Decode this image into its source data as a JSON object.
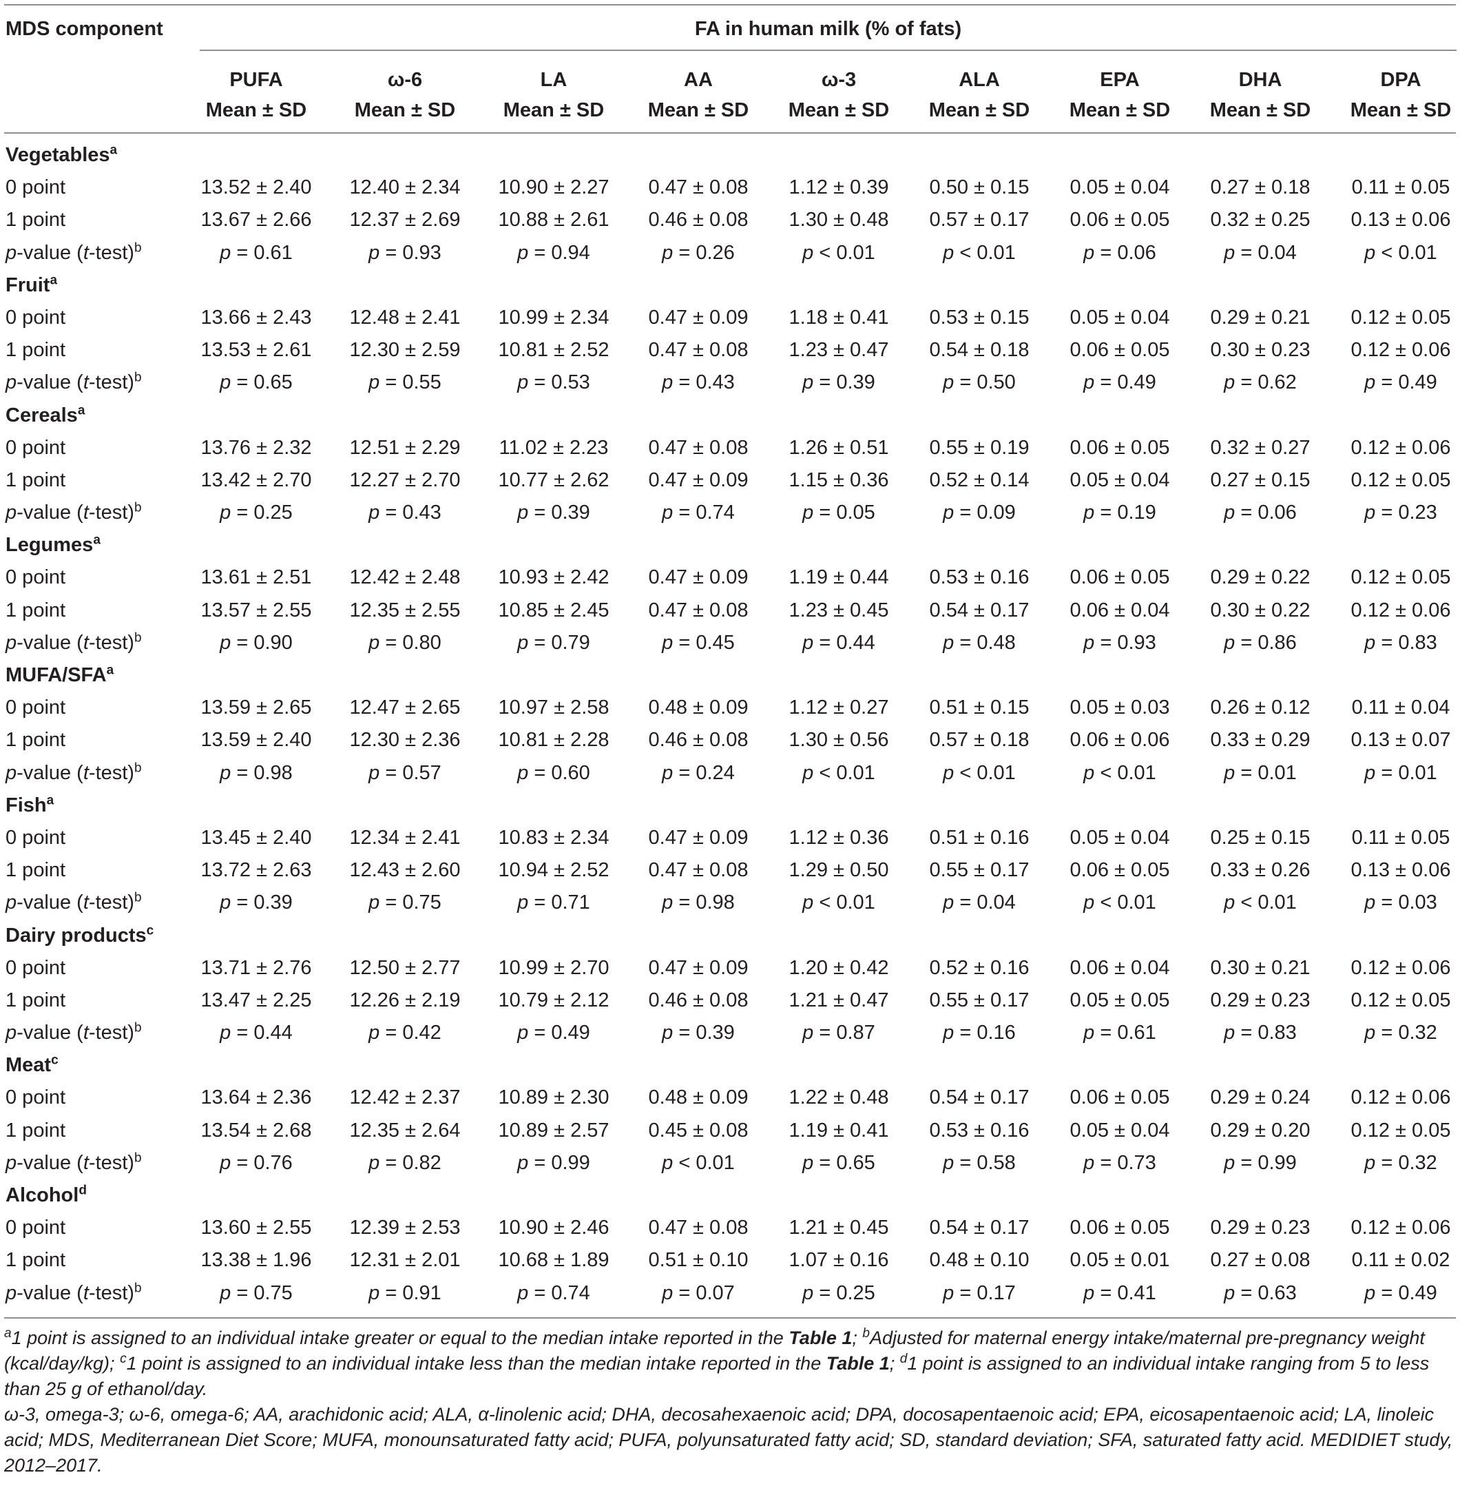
{
  "header": {
    "mds_component": "MDS component",
    "fa_title": "FA in human milk (% of fats)",
    "subheader": "Mean ± SD",
    "columns": [
      "PUFA",
      "ω-6",
      "LA",
      "AA",
      "ω-3",
      "ALA",
      "EPA",
      "DHA",
      "DPA"
    ]
  },
  "row_labels": {
    "zero": "0 point",
    "one": "1 point",
    "p_prefix": "p",
    "p_mid": "-value (",
    "p_t": "t",
    "p_suffix": "-test)",
    "p_sup": "b"
  },
  "groups": [
    {
      "name": "Vegetables",
      "sup": "a",
      "zero": [
        "13.52 ± 2.40",
        "12.40 ± 2.34",
        "10.90 ± 2.27",
        "0.47 ± 0.08",
        "1.12 ± 0.39",
        "0.50 ± 0.15",
        "0.05 ± 0.04",
        "0.27 ± 0.18",
        "0.11 ± 0.05"
      ],
      "one": [
        "13.67 ± 2.66",
        "12.37 ± 2.69",
        "10.88 ± 2.61",
        "0.46 ± 0.08",
        "1.30 ± 0.48",
        "0.57 ± 0.17",
        "0.06 ± 0.05",
        "0.32 ± 0.25",
        "0.13 ± 0.06"
      ],
      "p": [
        "= 0.61",
        "= 0.93",
        "= 0.94",
        "= 0.26",
        "< 0.01",
        "< 0.01",
        "= 0.06",
        "= 0.04",
        "< 0.01"
      ]
    },
    {
      "name": "Fruit",
      "sup": "a",
      "zero": [
        "13.66 ± 2.43",
        "12.48 ± 2.41",
        "10.99 ± 2.34",
        "0.47 ± 0.09",
        "1.18 ± 0.41",
        "0.53 ± 0.15",
        "0.05 ± 0.04",
        "0.29 ± 0.21",
        "0.12 ± 0.05"
      ],
      "one": [
        "13.53 ± 2.61",
        "12.30 ± 2.59",
        "10.81 ± 2.52",
        "0.47 ± 0.08",
        "1.23 ± 0.47",
        "0.54 ± 0.18",
        "0.06 ± 0.05",
        "0.30 ± 0.23",
        "0.12 ± 0.06"
      ],
      "p": [
        "= 0.65",
        "= 0.55",
        "= 0.53",
        "= 0.43",
        "= 0.39",
        "= 0.50",
        "= 0.49",
        "= 0.62",
        "= 0.49"
      ]
    },
    {
      "name": "Cereals",
      "sup": "a",
      "zero": [
        "13.76 ± 2.32",
        "12.51 ± 2.29",
        "11.02 ± 2.23",
        "0.47 ± 0.08",
        "1.26 ± 0.51",
        "0.55 ± 0.19",
        "0.06 ± 0.05",
        "0.32 ± 0.27",
        "0.12 ± 0.06"
      ],
      "one": [
        "13.42 ± 2.70",
        "12.27 ± 2.70",
        "10.77 ± 2.62",
        "0.47 ± 0.09",
        "1.15 ± 0.36",
        "0.52 ± 0.14",
        "0.05 ± 0.04",
        "0.27 ± 0.15",
        "0.12 ± 0.05"
      ],
      "p": [
        "= 0.25",
        "= 0.43",
        "= 0.39",
        "= 0.74",
        "= 0.05",
        "= 0.09",
        "= 0.19",
        "= 0.06",
        "= 0.23"
      ]
    },
    {
      "name": "Legumes",
      "sup": "a",
      "zero": [
        "13.61 ± 2.51",
        "12.42 ± 2.48",
        "10.93 ± 2.42",
        "0.47 ± 0.09",
        "1.19 ± 0.44",
        "0.53 ± 0.16",
        "0.06 ± 0.05",
        "0.29 ± 0.22",
        "0.12 ± 0.05"
      ],
      "one": [
        "13.57 ± 2.55",
        "12.35 ± 2.55",
        "10.85 ± 2.45",
        "0.47 ± 0.08",
        "1.23 ± 0.45",
        "0.54 ± 0.17",
        "0.06 ± 0.04",
        "0.30 ± 0.22",
        "0.12 ± 0.06"
      ],
      "p": [
        "= 0.90",
        "= 0.80",
        "= 0.79",
        "= 0.45",
        "= 0.44",
        "= 0.48",
        "= 0.93",
        "= 0.86",
        "= 0.83"
      ]
    },
    {
      "name": "MUFA/SFA",
      "sup": "a",
      "zero": [
        "13.59 ± 2.65",
        "12.47 ± 2.65",
        "10.97 ± 2.58",
        "0.48 ± 0.09",
        "1.12 ± 0.27",
        "0.51 ± 0.15",
        "0.05 ± 0.03",
        "0.26 ± 0.12",
        "0.11 ± 0.04"
      ],
      "one": [
        "13.59 ± 2.40",
        "12.30 ± 2.36",
        "10.81 ± 2.28",
        "0.46 ± 0.08",
        "1.30 ± 0.56",
        "0.57 ± 0.18",
        "0.06 ± 0.06",
        "0.33 ± 0.29",
        "0.13 ± 0.07"
      ],
      "p": [
        "= 0.98",
        "= 0.57",
        "= 0.60",
        "= 0.24",
        "< 0.01",
        "< 0.01",
        "< 0.01",
        "= 0.01",
        "= 0.01"
      ]
    },
    {
      "name": "Fish",
      "sup": "a",
      "zero": [
        "13.45 ± 2.40",
        "12.34 ± 2.41",
        "10.83 ± 2.34",
        "0.47 ± 0.09",
        "1.12 ± 0.36",
        "0.51 ± 0.16",
        "0.05 ± 0.04",
        "0.25 ± 0.15",
        "0.11 ± 0.05"
      ],
      "one": [
        "13.72 ± 2.63",
        "12.43 ± 2.60",
        "10.94 ± 2.52",
        "0.47 ± 0.08",
        "1.29 ± 0.50",
        "0.55 ± 0.17",
        "0.06 ± 0.05",
        "0.33 ± 0.26",
        "0.13 ± 0.06"
      ],
      "p": [
        "= 0.39",
        "= 0.75",
        "= 0.71",
        "= 0.98",
        "< 0.01",
        "= 0.04",
        "< 0.01",
        "< 0.01",
        "= 0.03"
      ]
    },
    {
      "name": "Dairy products",
      "sup": "c",
      "zero": [
        "13.71 ± 2.76",
        "12.50 ± 2.77",
        "10.99 ± 2.70",
        "0.47 ± 0.09",
        "1.20 ± 0.42",
        "0.52 ± 0.16",
        "0.06 ± 0.04",
        "0.30 ± 0.21",
        "0.12 ± 0.06"
      ],
      "one": [
        "13.47 ± 2.25",
        "12.26 ± 2.19",
        "10.79 ± 2.12",
        "0.46 ± 0.08",
        "1.21 ± 0.47",
        "0.55 ± 0.17",
        "0.05 ± 0.05",
        "0.29 ± 0.23",
        "0.12 ± 0.05"
      ],
      "p": [
        "= 0.44",
        "= 0.42",
        "= 0.49",
        "= 0.39",
        "= 0.87",
        "= 0.16",
        "= 0.61",
        "= 0.83",
        "= 0.32"
      ]
    },
    {
      "name": "Meat",
      "sup": "c",
      "zero": [
        "13.64 ± 2.36",
        "12.42 ± 2.37",
        "10.89 ± 2.30",
        "0.48 ± 0.09",
        "1.22 ± 0.48",
        "0.54 ± 0.17",
        "0.06 ± 0.05",
        "0.29 ± 0.24",
        "0.12 ± 0.06"
      ],
      "one": [
        "13.54 ± 2.68",
        "12.35 ± 2.64",
        "10.89 ± 2.57",
        "0.45 ± 0.08",
        "1.19 ± 0.41",
        "0.53 ± 0.16",
        "0.05 ± 0.04",
        "0.29 ± 0.20",
        "0.12 ± 0.05"
      ],
      "p": [
        "= 0.76",
        "= 0.82",
        "= 0.99",
        "< 0.01",
        "= 0.65",
        "= 0.58",
        "= 0.73",
        "= 0.99",
        "= 0.32"
      ]
    },
    {
      "name": "Alcohol",
      "sup": "d",
      "zero": [
        "13.60 ± 2.55",
        "12.39 ± 2.53",
        "10.90 ± 2.46",
        "0.47 ± 0.08",
        "1.21 ± 0.45",
        "0.54 ± 0.17",
        "0.06 ± 0.05",
        "0.29 ± 0.23",
        "0.12 ± 0.06"
      ],
      "one": [
        "13.38 ± 1.96",
        "12.31 ± 2.01",
        "10.68 ± 1.89",
        "0.51 ± 0.10",
        "1.07 ± 0.16",
        "0.48 ± 0.10",
        "0.05 ± 0.01",
        "0.27 ± 0.08",
        "0.11 ± 0.02"
      ],
      "p": [
        "= 0.75",
        "= 0.91",
        "= 0.74",
        "= 0.07",
        "= 0.25",
        "= 0.17",
        "= 0.41",
        "= 0.63",
        "= 0.49"
      ]
    }
  ],
  "footnotes": {
    "a_sup": "a",
    "a_text1": "1 point is assigned to an individual intake greater or equal to the median intake reported in the ",
    "table_ref": "Table 1",
    "sep": "; ",
    "b_sup": "b",
    "b_text": "Adjusted for maternal energy intake/maternal pre-pregnancy weight (kcal/day/kg); ",
    "c_sup": "c",
    "c_text": "1 point is assigned to an individual intake less than the median intake reported in the ",
    "d_sup": "d",
    "d_text": "1 point is assigned to an individual intake ranging from 5 to less than 25 g of ethanol/day.",
    "abbreviations": "ω-3, omega-3; ω-6, omega-6; AA, arachidonic acid; ALA, α-linolenic acid; DHA, decosahexaenoic acid; DPA, docosapentaenoic acid; EPA, eicosapentaenoic acid; LA, linoleic acid; MDS, Mediterranean Diet Score; MUFA, monounsaturated fatty acid; PUFA, polyunsaturated fatty acid; SD, standard deviation; SFA, saturated fatty acid. MEDIDIET study, 2012–2017."
  }
}
